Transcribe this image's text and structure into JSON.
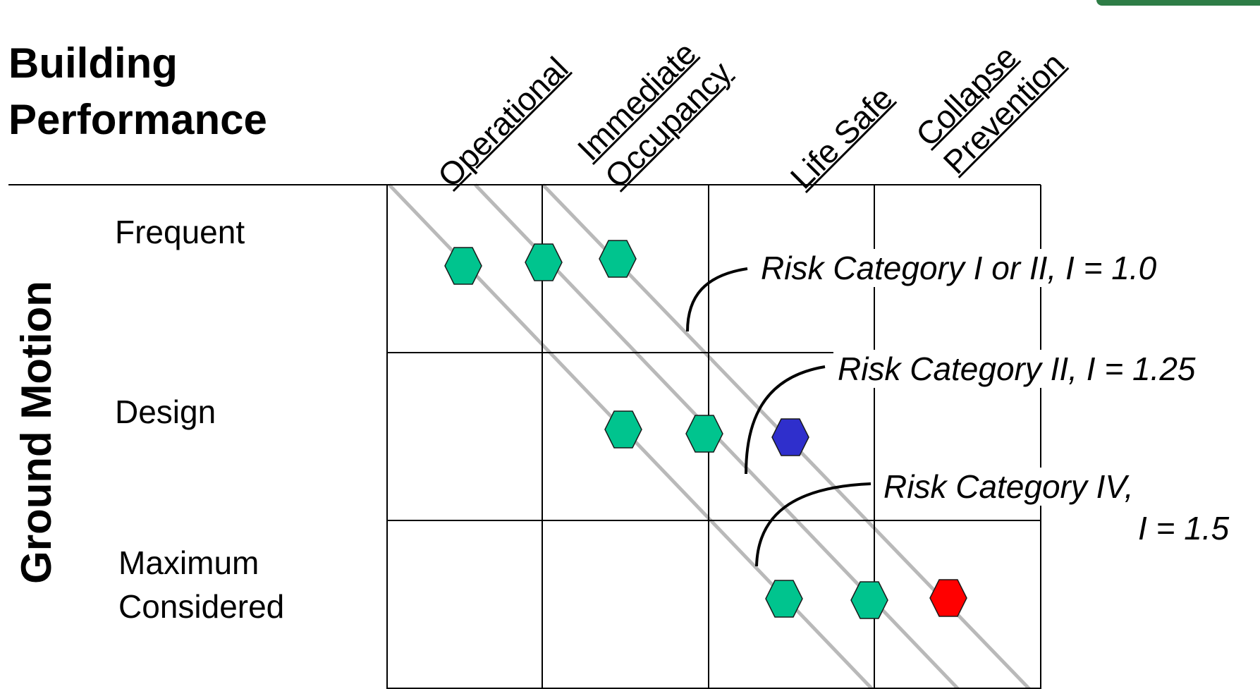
{
  "title": {
    "line1": "Building",
    "line2": "Performance"
  },
  "side_title": "Ground Motion",
  "columns": [
    {
      "line1": "Operational",
      "line2": ""
    },
    {
      "line1": "Immediate",
      "line2": "Occupancy"
    },
    {
      "line1": "Life Safe",
      "line2": ""
    },
    {
      "line1": "Collapse",
      "line2": "Prevention"
    }
  ],
  "rows": {
    "frequent": "Frequent",
    "design": "Design",
    "maximum_line1": "Maximum",
    "maximum_line2": "Considered"
  },
  "callouts": {
    "risk_1": "Risk Category I or II, I = 1.0",
    "risk_2": "Risk Category II, I = 1.25",
    "risk_3_line1": "Risk Category IV,",
    "risk_3_line2": "I = 1.5"
  },
  "colors": {
    "marker_green": "#00c48e",
    "marker_blue": "#2f2fcc",
    "marker_red": "#ff0000",
    "diagonal_gray": "#b9b9b9",
    "grid_black": "#000000",
    "corner_tab_green": "#2e7d46"
  },
  "markers": [
    {
      "name": "hexagon-marker-frequent-operational",
      "color": "green"
    },
    {
      "name": "hexagon-marker-frequent-immediate",
      "color": "green"
    },
    {
      "name": "hexagon-marker-frequent-immediate-2",
      "color": "green"
    },
    {
      "name": "hexagon-marker-design-immediate",
      "color": "green"
    },
    {
      "name": "hexagon-marker-design-lifesafe",
      "color": "green"
    },
    {
      "name": "hexagon-marker-design-lifesafe-2",
      "color": "blue"
    },
    {
      "name": "hexagon-marker-mce-lifesafe",
      "color": "green"
    },
    {
      "name": "hexagon-marker-mce-collapse",
      "color": "green"
    },
    {
      "name": "hexagon-marker-mce-collapse-2",
      "color": "red"
    }
  ]
}
